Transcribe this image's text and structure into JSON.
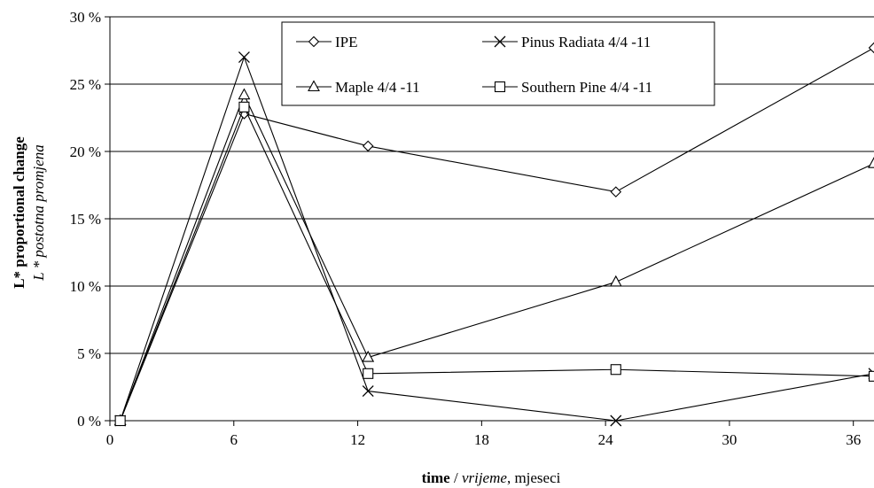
{
  "chart_data": {
    "type": "line",
    "xlabel": {
      "bold": "time",
      "sep": " / ",
      "italic": "vrijeme",
      "rest": ", mjeseci"
    },
    "ylabel": {
      "line1": "L* proportional change",
      "line2": "L * postotna promjena"
    },
    "xlim": [
      0,
      37
    ],
    "ylim": [
      0,
      30
    ],
    "x_ticks": [
      0,
      6,
      12,
      18,
      24,
      30,
      36
    ],
    "x_tick_labels": [
      "0",
      "6",
      "12",
      "18",
      "24",
      "30",
      "36"
    ],
    "y_ticks": [
      0,
      5,
      10,
      15,
      20,
      25,
      30
    ],
    "y_tick_labels": [
      "0 %",
      "5 %",
      "10 %",
      "15 %",
      "20 %",
      "25 %",
      "30 %"
    ],
    "grid": "horizontal",
    "legend_position": "top-center",
    "x": [
      0.5,
      6.5,
      12.5,
      24.5,
      37
    ],
    "series": [
      {
        "name": "IPE",
        "marker": "diamond",
        "values": [
          0,
          22.8,
          20.4,
          17.0,
          27.7
        ]
      },
      {
        "name": "Pinus Radiata 4/4 -11",
        "marker": "x",
        "values": [
          0,
          27.0,
          2.2,
          0,
          3.5
        ]
      },
      {
        "name": "Maple 4/4 -11",
        "marker": "triangle",
        "values": [
          0,
          24.2,
          4.7,
          10.3,
          19.1
        ]
      },
      {
        "name": "Southern Pine 4/4 -11",
        "marker": "square",
        "values": [
          0,
          23.3,
          3.5,
          3.8,
          3.3
        ]
      }
    ]
  }
}
